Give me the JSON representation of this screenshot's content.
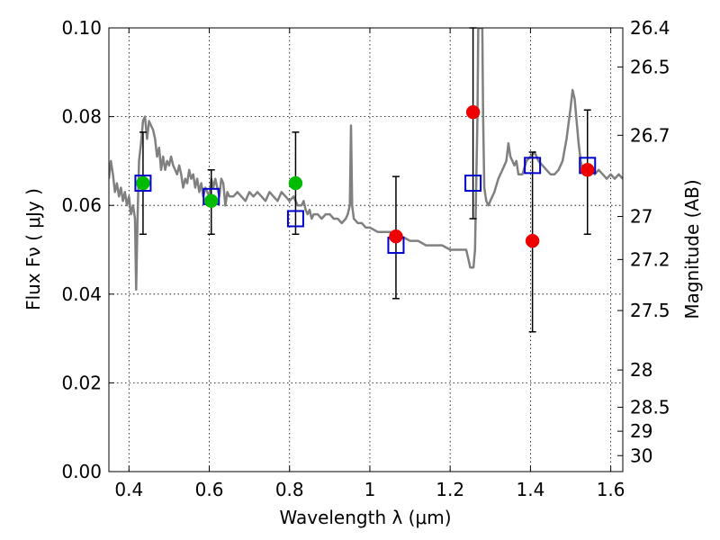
{
  "chart_data": {
    "type": "scatter",
    "xlabel": "Wavelength  λ (μm)",
    "ylabel": "Flux  Fν  ( μJy )",
    "ylabel_right": "Magnitude (AB)",
    "xlim": [
      0.35,
      1.63
    ],
    "ylim": [
      0.0,
      0.1
    ],
    "grid": true,
    "x_ticks": [
      0.4,
      0.6,
      0.8,
      1.0,
      1.2,
      1.4,
      1.6
    ],
    "x_tick_labels": [
      "0.4",
      "0.6",
      "0.8",
      "1",
      "1.2",
      "1.4",
      "1.6"
    ],
    "y_ticks": [
      0.0,
      0.02,
      0.04,
      0.06,
      0.08,
      0.1
    ],
    "y_tick_labels": [
      "0.00",
      "0.02",
      "0.04",
      "0.06",
      "0.08",
      "0.10"
    ],
    "right_ticks": [
      {
        "label": "26.4",
        "flux": 0.1
      },
      {
        "label": "26.5",
        "flux": 0.0912
      },
      {
        "label": "26.7",
        "flux": 0.0758
      },
      {
        "label": "27",
        "flux": 0.0575
      },
      {
        "label": "27.2",
        "flux": 0.0478
      },
      {
        "label": "27.5",
        "flux": 0.0363
      },
      {
        "label": "28",
        "flux": 0.0229
      },
      {
        "label": "28.5",
        "flux": 0.0145
      },
      {
        "label": "29",
        "flux": 0.0091
      },
      {
        "label": "30",
        "flux": 0.0036
      }
    ],
    "series": [
      {
        "name": "model-spectrum",
        "kind": "line",
        "color": "#808080",
        "points": [
          [
            0.35,
            0.066
          ],
          [
            0.355,
            0.07
          ],
          [
            0.36,
            0.067
          ],
          [
            0.365,
            0.063
          ],
          [
            0.37,
            0.065
          ],
          [
            0.375,
            0.062
          ],
          [
            0.38,
            0.064
          ],
          [
            0.385,
            0.061
          ],
          [
            0.39,
            0.063
          ],
          [
            0.395,
            0.06
          ],
          [
            0.4,
            0.062
          ],
          [
            0.405,
            0.058
          ],
          [
            0.41,
            0.06
          ],
          [
            0.415,
            0.057
          ],
          [
            0.418,
            0.041
          ],
          [
            0.421,
            0.056
          ],
          [
            0.425,
            0.07
          ],
          [
            0.43,
            0.074
          ],
          [
            0.435,
            0.079
          ],
          [
            0.44,
            0.08
          ],
          [
            0.445,
            0.075
          ],
          [
            0.45,
            0.079
          ],
          [
            0.455,
            0.078
          ],
          [
            0.46,
            0.077
          ],
          [
            0.465,
            0.075
          ],
          [
            0.47,
            0.071
          ],
          [
            0.475,
            0.073
          ],
          [
            0.48,
            0.068
          ],
          [
            0.485,
            0.071
          ],
          [
            0.49,
            0.068
          ],
          [
            0.495,
            0.07
          ],
          [
            0.5,
            0.069
          ],
          [
            0.505,
            0.071
          ],
          [
            0.51,
            0.069
          ],
          [
            0.515,
            0.068
          ],
          [
            0.52,
            0.067
          ],
          [
            0.525,
            0.069
          ],
          [
            0.53,
            0.067
          ],
          [
            0.535,
            0.064
          ],
          [
            0.54,
            0.066
          ],
          [
            0.545,
            0.065
          ],
          [
            0.55,
            0.068
          ],
          [
            0.555,
            0.066
          ],
          [
            0.56,
            0.067
          ],
          [
            0.565,
            0.064
          ],
          [
            0.57,
            0.066
          ],
          [
            0.575,
            0.063
          ],
          [
            0.58,
            0.065
          ],
          [
            0.585,
            0.062
          ],
          [
            0.59,
            0.064
          ],
          [
            0.6,
            0.062
          ],
          [
            0.605,
            0.066
          ],
          [
            0.61,
            0.064
          ],
          [
            0.615,
            0.066
          ],
          [
            0.62,
            0.064
          ],
          [
            0.625,
            0.062
          ],
          [
            0.63,
            0.066
          ],
          [
            0.635,
            0.065
          ],
          [
            0.64,
            0.06
          ],
          [
            0.645,
            0.063
          ],
          [
            0.65,
            0.062
          ],
          [
            0.66,
            0.062
          ],
          [
            0.67,
            0.063
          ],
          [
            0.68,
            0.062
          ],
          [
            0.69,
            0.061
          ],
          [
            0.7,
            0.063
          ],
          [
            0.71,
            0.062
          ],
          [
            0.72,
            0.063
          ],
          [
            0.73,
            0.062
          ],
          [
            0.74,
            0.061
          ],
          [
            0.75,
            0.063
          ],
          [
            0.76,
            0.062
          ],
          [
            0.77,
            0.061
          ],
          [
            0.78,
            0.063
          ],
          [
            0.79,
            0.062
          ],
          [
            0.8,
            0.061
          ],
          [
            0.81,
            0.062
          ],
          [
            0.82,
            0.06
          ],
          [
            0.83,
            0.06
          ],
          [
            0.835,
            0.061
          ],
          [
            0.84,
            0.059
          ],
          [
            0.845,
            0.058
          ],
          [
            0.85,
            0.059
          ],
          [
            0.855,
            0.057
          ],
          [
            0.86,
            0.058
          ],
          [
            0.87,
            0.058
          ],
          [
            0.88,
            0.057
          ],
          [
            0.89,
            0.058
          ],
          [
            0.9,
            0.058
          ],
          [
            0.91,
            0.057
          ],
          [
            0.92,
            0.057
          ],
          [
            0.93,
            0.056
          ],
          [
            0.94,
            0.057
          ],
          [
            0.945,
            0.058
          ],
          [
            0.95,
            0.06
          ],
          [
            0.953,
            0.078
          ],
          [
            0.956,
            0.06
          ],
          [
            0.96,
            0.057
          ],
          [
            0.97,
            0.056
          ],
          [
            0.98,
            0.056
          ],
          [
            0.99,
            0.055
          ],
          [
            1.0,
            0.055
          ],
          [
            1.02,
            0.054
          ],
          [
            1.04,
            0.054
          ],
          [
            1.06,
            0.054
          ],
          [
            1.08,
            0.053
          ],
          [
            1.1,
            0.052
          ],
          [
            1.12,
            0.052
          ],
          [
            1.14,
            0.051
          ],
          [
            1.16,
            0.051
          ],
          [
            1.18,
            0.051
          ],
          [
            1.2,
            0.05
          ],
          [
            1.22,
            0.05
          ],
          [
            1.24,
            0.05
          ],
          [
            1.245,
            0.048
          ],
          [
            1.25,
            0.046
          ],
          [
            1.258,
            0.046
          ],
          [
            1.262,
            0.05
          ],
          [
            1.268,
            0.08
          ],
          [
            1.27,
            0.1
          ],
          [
            1.28,
            0.1
          ],
          [
            1.282,
            0.08
          ],
          [
            1.285,
            0.064
          ],
          [
            1.29,
            0.061
          ],
          [
            1.295,
            0.06
          ],
          [
            1.3,
            0.061
          ],
          [
            1.31,
            0.063
          ],
          [
            1.32,
            0.066
          ],
          [
            1.33,
            0.068
          ],
          [
            1.34,
            0.07
          ],
          [
            1.345,
            0.074
          ],
          [
            1.35,
            0.071
          ],
          [
            1.36,
            0.069
          ],
          [
            1.365,
            0.07
          ],
          [
            1.37,
            0.067
          ],
          [
            1.38,
            0.067
          ],
          [
            1.39,
            0.07
          ],
          [
            1.4,
            0.071
          ],
          [
            1.41,
            0.072
          ],
          [
            1.42,
            0.07
          ],
          [
            1.43,
            0.069
          ],
          [
            1.44,
            0.068
          ],
          [
            1.45,
            0.067
          ],
          [
            1.46,
            0.067
          ],
          [
            1.47,
            0.068
          ],
          [
            1.48,
            0.07
          ],
          [
            1.49,
            0.075
          ],
          [
            1.5,
            0.082
          ],
          [
            1.505,
            0.086
          ],
          [
            1.51,
            0.084
          ],
          [
            1.515,
            0.079
          ],
          [
            1.52,
            0.074
          ],
          [
            1.525,
            0.07
          ],
          [
            1.53,
            0.068
          ],
          [
            1.54,
            0.068
          ],
          [
            1.55,
            0.068
          ],
          [
            1.56,
            0.067
          ],
          [
            1.57,
            0.068
          ],
          [
            1.58,
            0.067
          ],
          [
            1.59,
            0.066
          ],
          [
            1.6,
            0.067
          ],
          [
            1.61,
            0.066
          ],
          [
            1.62,
            0.067
          ],
          [
            1.63,
            0.066
          ]
        ]
      },
      {
        "name": "model-photometry",
        "kind": "open-square",
        "color": "#0000cc",
        "points": [
          [
            0.435,
            0.065
          ],
          [
            0.605,
            0.062
          ],
          [
            0.815,
            0.057
          ],
          [
            1.065,
            0.051
          ],
          [
            1.257,
            0.065
          ],
          [
            1.405,
            0.069
          ],
          [
            1.542,
            0.069
          ]
        ]
      },
      {
        "name": "detections-green",
        "kind": "filled-circle",
        "color": "#00bb00",
        "points": [
          [
            0.435,
            0.065
          ],
          [
            0.605,
            0.061
          ],
          [
            0.815,
            0.065
          ]
        ]
      },
      {
        "name": "detections-red",
        "kind": "filled-circle",
        "color": "#ee0000",
        "points": [
          [
            1.065,
            0.053
          ],
          [
            1.257,
            0.081
          ],
          [
            1.405,
            0.052
          ],
          [
            1.542,
            0.068
          ]
        ]
      },
      {
        "name": "error-bars",
        "kind": "error-bar",
        "color": "#000000",
        "points": [
          {
            "x": 0.435,
            "low": 0.0535,
            "high": 0.0765
          },
          {
            "x": 0.605,
            "low": 0.0535,
            "high": 0.068
          },
          {
            "x": 0.815,
            "low": 0.0535,
            "high": 0.0765
          },
          {
            "x": 1.065,
            "low": 0.039,
            "high": 0.0665
          },
          {
            "x": 1.257,
            "low": 0.057,
            "high": 0.1
          },
          {
            "x": 1.405,
            "low": 0.0315,
            "high": 0.072
          },
          {
            "x": 1.542,
            "low": 0.0535,
            "high": 0.0815
          }
        ]
      }
    ]
  }
}
